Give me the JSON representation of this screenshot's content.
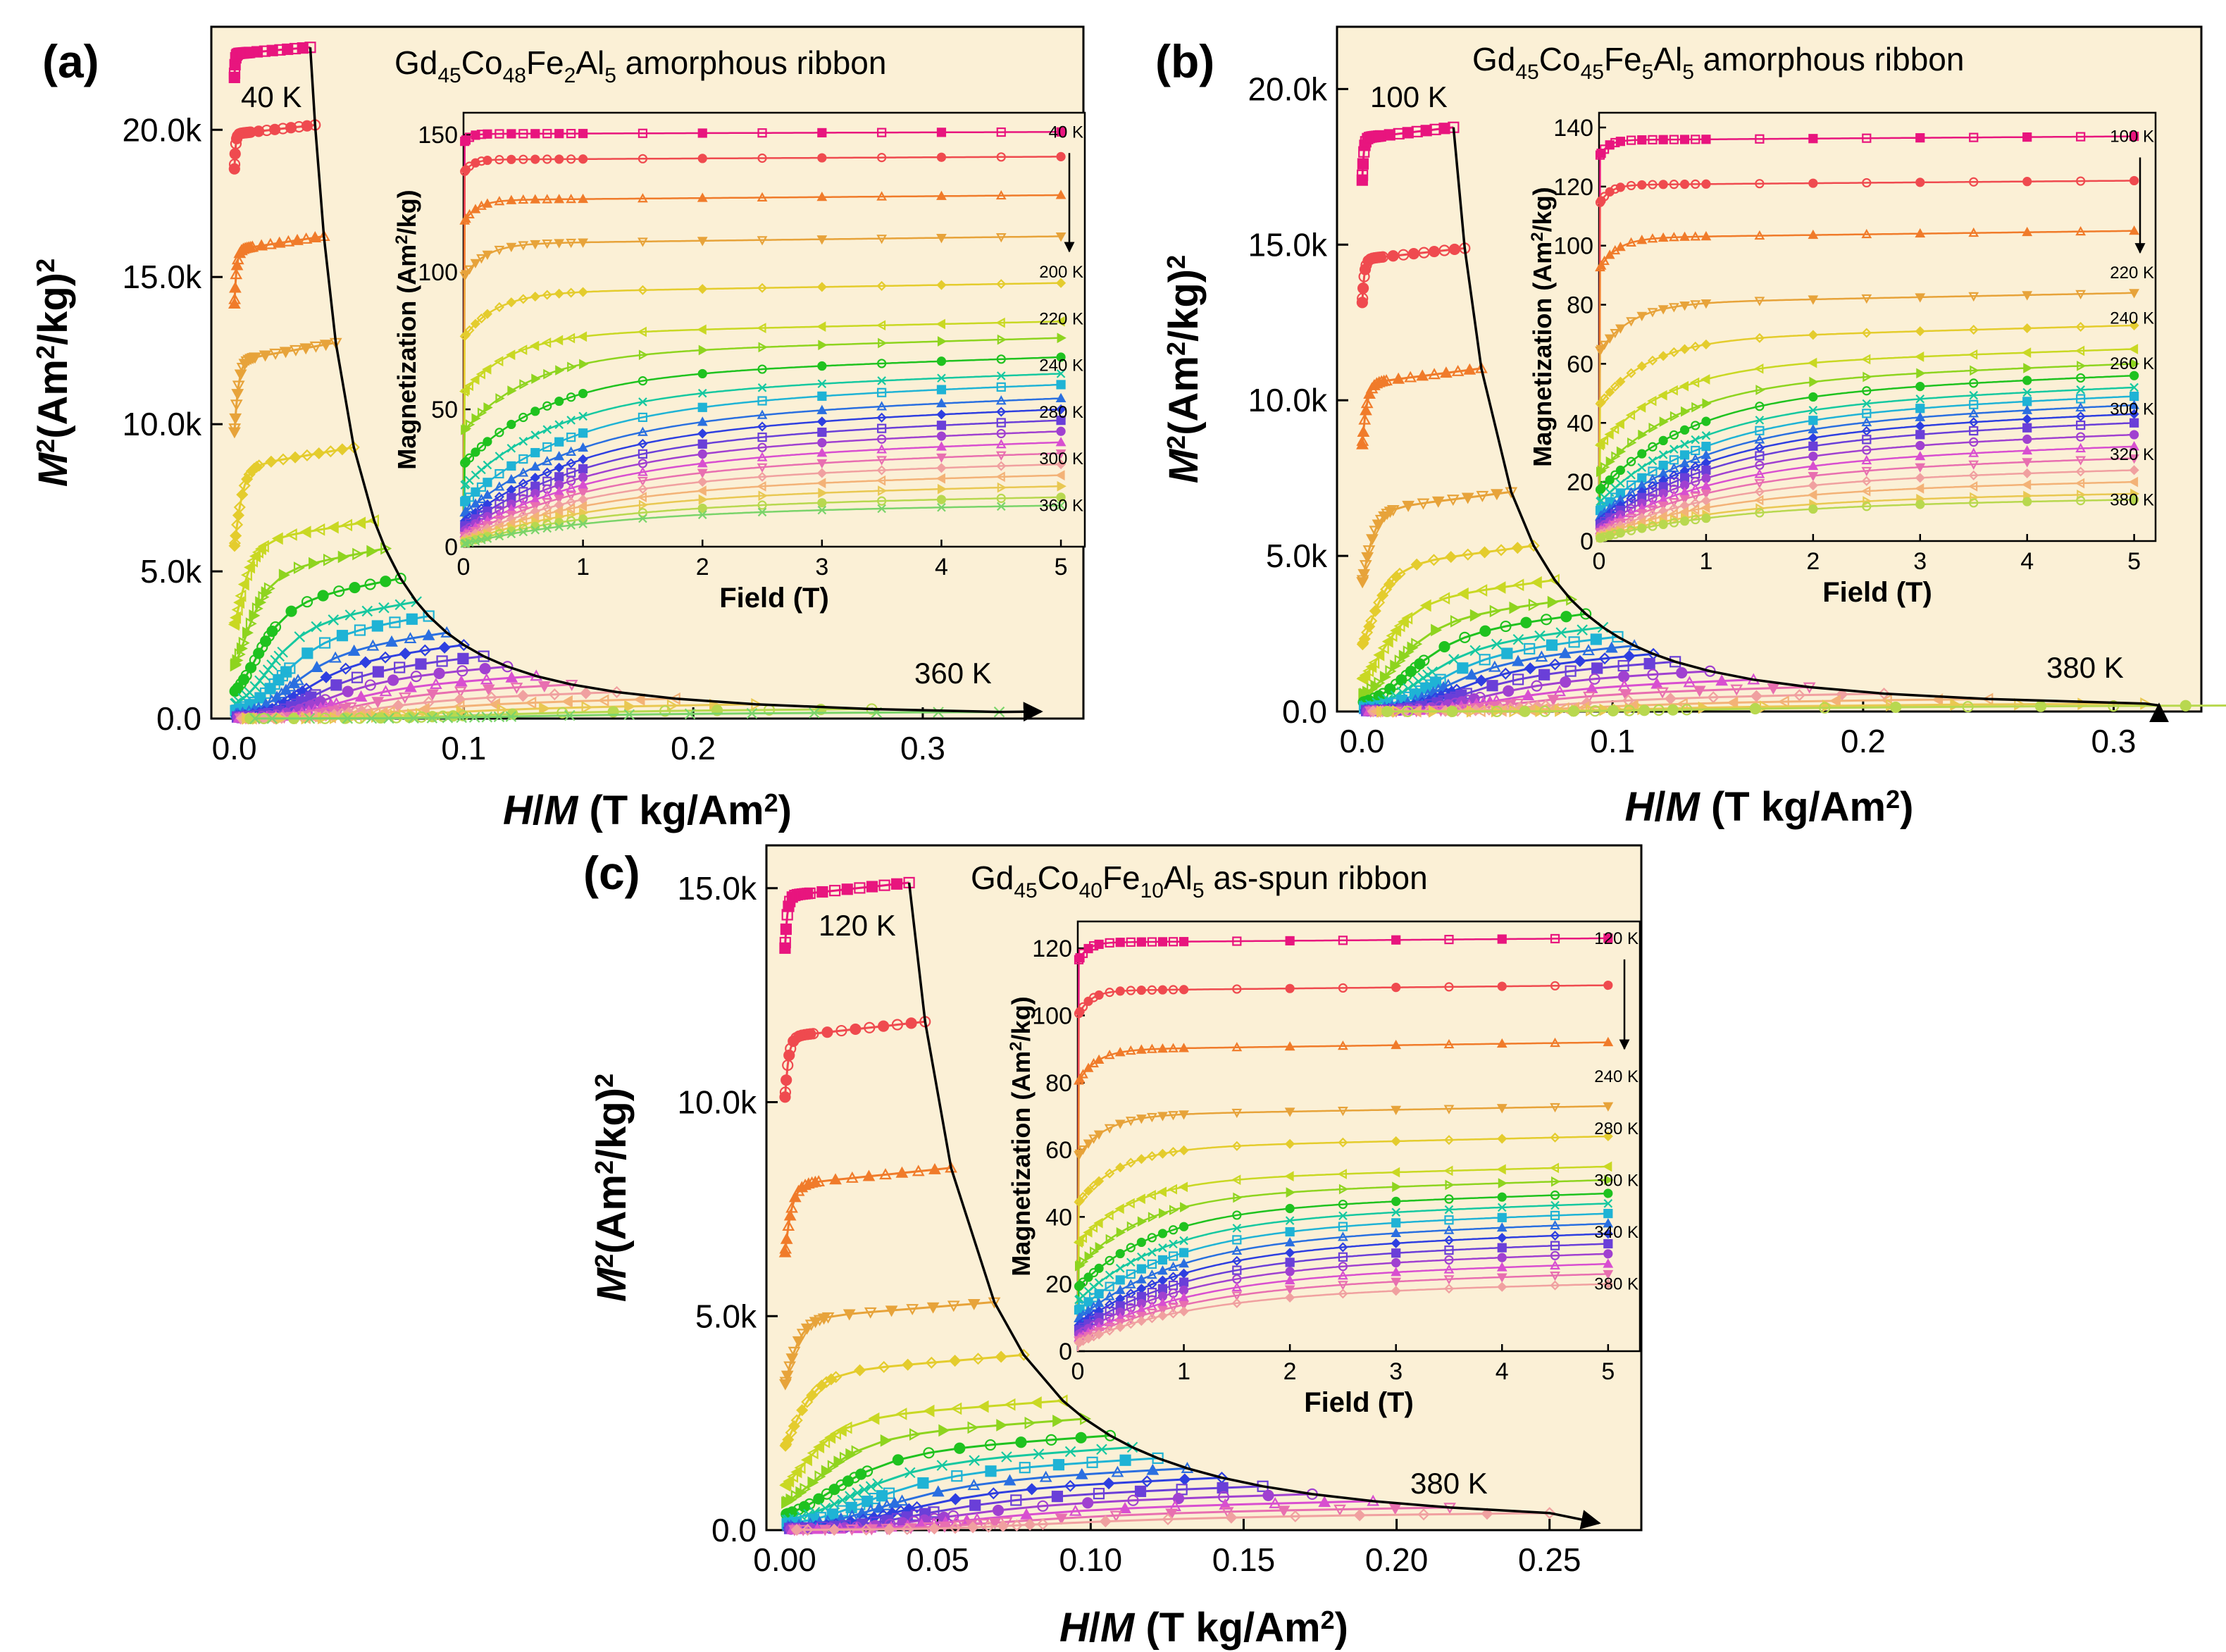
{
  "chart_data": [
    {
      "type": "scatter",
      "panel_label": "(a)",
      "title_parts": [
        "Gd",
        "45",
        "Co",
        "48",
        "Fe",
        "2",
        "Al",
        "5",
        " amorphous ribbon"
      ],
      "xlabel_parts": [
        "H",
        "/",
        "M",
        " (T kg/Am",
        "2",
        ")"
      ],
      "ylabel_parts": [
        "M",
        "2",
        "(Am",
        "2",
        "/kg)",
        "2"
      ],
      "xlim": [
        -0.01,
        0.37
      ],
      "ylim": [
        0,
        23500
      ],
      "xticks": [
        "0.0",
        "0.1",
        "0.2",
        "0.3"
      ],
      "xtick_values": [
        0,
        0.1,
        0.2,
        0.3
      ],
      "yticks": [
        "0.0",
        "5.0k",
        "10.0k",
        "15.0k",
        "20.0k"
      ],
      "ytick_values": [
        0,
        5000,
        10000,
        15000,
        20000
      ],
      "temp_start": 40,
      "temp_end": 360,
      "temp_step": 10,
      "label_low_temp": "40 K",
      "label_high_temp": "360 K",
      "isotherm_fields_T": [
        0.01,
        0.02,
        0.05,
        0.1,
        0.15,
        0.2,
        0.3,
        0.4,
        0.5,
        0.6,
        0.7,
        0.8,
        0.9,
        1.0,
        1.5,
        2.0,
        2.5,
        3.0,
        3.5,
        4.0,
        4.5,
        5.0
      ],
      "inset": {
        "xlabel": "Field (T)",
        "ylabel_parts": [
          "Magnetization (Am",
          "2",
          "/kg)"
        ],
        "xlim": [
          0,
          5.2
        ],
        "ylim": [
          0,
          158
        ],
        "xticks": [
          "0",
          "1",
          "2",
          "3",
          "4",
          "5"
        ],
        "yticks": [
          "0",
          "50",
          "100",
          "150"
        ],
        "ytick_values": [
          0,
          50,
          100,
          150
        ],
        "temp_labels": [
          "40 K",
          "200 K",
          "220 K",
          "240 K",
          "280 K",
          "300 K",
          "360 K"
        ],
        "curves_M_at_5T": [
          151,
          142,
          128,
          113,
          96,
          82,
          76,
          69,
          63,
          59,
          54,
          50,
          46,
          42,
          38,
          34,
          30,
          26,
          22,
          18,
          15
        ],
        "curves_M_at_0p02T": [
          147,
          136,
          118,
          98,
          76,
          56,
          42,
          30,
          22,
          16,
          12,
          9,
          7,
          5.5,
          4.5,
          3.5,
          2.8,
          2.2,
          1.7,
          1.3,
          1.0
        ]
      }
    },
    {
      "type": "scatter",
      "panel_label": "(b)",
      "title_parts": [
        "Gd",
        "45",
        "Co",
        "45",
        "Fe",
        "5",
        "Al",
        "5",
        " amorphous ribbon"
      ],
      "xlabel_parts": [
        "H",
        "/",
        "M",
        " (T kg/Am",
        "2",
        ")"
      ],
      "ylabel_parts": [
        "M",
        "2",
        "(Am",
        "2",
        "/kg)",
        "2"
      ],
      "xlim": [
        -0.01,
        0.335
      ],
      "ylim": [
        0,
        22000
      ],
      "xticks": [
        "0.0",
        "0.1",
        "0.2",
        "0.3"
      ],
      "xtick_values": [
        0,
        0.1,
        0.2,
        0.3
      ],
      "yticks": [
        "0.0",
        "5.0k",
        "10.0k",
        "15.0k",
        "20.0k"
      ],
      "ytick_values": [
        0,
        5000,
        10000,
        15000,
        20000
      ],
      "temp_start": 100,
      "temp_end": 380,
      "temp_step": 10,
      "label_low_temp": "100 K",
      "label_high_temp": "380 K",
      "isotherm_fields_T": [
        0.01,
        0.02,
        0.05,
        0.1,
        0.15,
        0.2,
        0.3,
        0.4,
        0.5,
        0.6,
        0.7,
        0.8,
        0.9,
        1.0,
        1.5,
        2.0,
        2.5,
        3.0,
        3.5,
        4.0,
        4.5,
        5.0
      ],
      "inset": {
        "xlabel": "Field (T)",
        "ylabel_parts": [
          "Magnetization (Am",
          "2",
          "/kg)"
        ],
        "xlim": [
          0,
          5.2
        ],
        "ylim": [
          0,
          145
        ],
        "xticks": [
          "0",
          "1",
          "2",
          "3",
          "4",
          "5"
        ],
        "yticks": [
          "0",
          "20",
          "40",
          "60",
          "80",
          "100",
          "120",
          "140"
        ],
        "ytick_values": [
          0,
          20,
          40,
          60,
          80,
          100,
          120,
          140
        ],
        "temp_labels": [
          "100 K",
          "220 K",
          "240 K",
          "260 K",
          "300 K",
          "320 K",
          "380 K"
        ],
        "curves_M_at_5T": [
          137,
          122,
          105,
          84,
          73,
          65,
          60,
          56,
          52,
          49,
          46,
          43,
          40,
          36,
          32,
          28,
          24,
          20,
          16,
          14
        ],
        "curves_M_at_0p02T": [
          130,
          114,
          92,
          64,
          46,
          32,
          23,
          17,
          13,
          10,
          8,
          6.5,
          5.2,
          4.2,
          3.4,
          2.7,
          2.1,
          1.6,
          1.2,
          0.9
        ]
      }
    },
    {
      "type": "scatter",
      "panel_label": "(c)",
      "title_parts": [
        "Gd",
        "45",
        "Co",
        "40",
        "Fe",
        "10",
        "Al",
        "5",
        "  as-spun ribbon"
      ],
      "xlabel_parts": [
        "H",
        "/",
        "M",
        " (T kg/Am",
        "2",
        ")"
      ],
      "ylabel_parts": [
        "M",
        "2",
        "(Am",
        "2",
        "/kg)",
        "2"
      ],
      "xlim": [
        -0.006,
        0.28
      ],
      "ylim": [
        0,
        16000
      ],
      "xticks": [
        "0.00",
        "0.05",
        "0.10",
        "0.15",
        "0.20",
        "0.25"
      ],
      "xtick_values": [
        0,
        0.05,
        0.1,
        0.15,
        0.2,
        0.25
      ],
      "yticks": [
        "0.0",
        "5.0k",
        "10.0k",
        "15.0k"
      ],
      "ytick_values": [
        0,
        5000,
        10000,
        15000
      ],
      "temp_start": 120,
      "temp_end": 380,
      "temp_step": 10,
      "label_low_temp": "120 K",
      "label_high_temp": "380 K",
      "isotherm_fields_T": [
        0.01,
        0.02,
        0.05,
        0.1,
        0.15,
        0.2,
        0.3,
        0.4,
        0.5,
        0.6,
        0.7,
        0.8,
        0.9,
        1.0,
        1.5,
        2.0,
        2.5,
        3.0,
        3.5,
        4.0,
        4.5,
        5.0
      ],
      "inset": {
        "xlabel": "Field (T)",
        "ylabel_parts": [
          "Magnetization (Am",
          "2",
          "/kg)"
        ],
        "xlim": [
          0,
          5.3
        ],
        "ylim": [
          0,
          128
        ],
        "xticks": [
          "0",
          "1",
          "2",
          "3",
          "4",
          "5"
        ],
        "yticks": [
          "0",
          "20",
          "40",
          "60",
          "80",
          "100",
          "120"
        ],
        "ytick_values": [
          0,
          20,
          40,
          60,
          80,
          100,
          120
        ],
        "temp_labels": [
          "120 K",
          "240 K",
          "280 K",
          "300 K",
          "340 K",
          "380 K"
        ],
        "curves_M_at_5T": [
          123,
          109,
          92,
          73,
          64,
          55,
          51,
          47,
          44,
          41,
          38,
          35,
          32,
          29,
          26,
          23,
          20
        ],
        "curves_M_at_0p02T": [
          116,
          100,
          80,
          58,
          44,
          32,
          25,
          19,
          15,
          12,
          9.5,
          7.5,
          6,
          4.8,
          3.8,
          3,
          2.4
        ]
      }
    }
  ],
  "colors": {
    "background_panel": "#fbf0d6",
    "axis": "#000000",
    "curve_palette": [
      "#e8157e",
      "#ef4a4f",
      "#f07b2a",
      "#e7a33a",
      "#e4cc2d",
      "#c9d823",
      "#8ed41f",
      "#1fc21f",
      "#16c8a0",
      "#1fb3d5",
      "#2a6fe0",
      "#2e3fe0",
      "#6a3fd8",
      "#a041d0",
      "#d84fd0",
      "#e86fb0",
      "#f0a0a0",
      "#f3b277",
      "#e9c852",
      "#b8d84f",
      "#7ad46a"
    ]
  }
}
